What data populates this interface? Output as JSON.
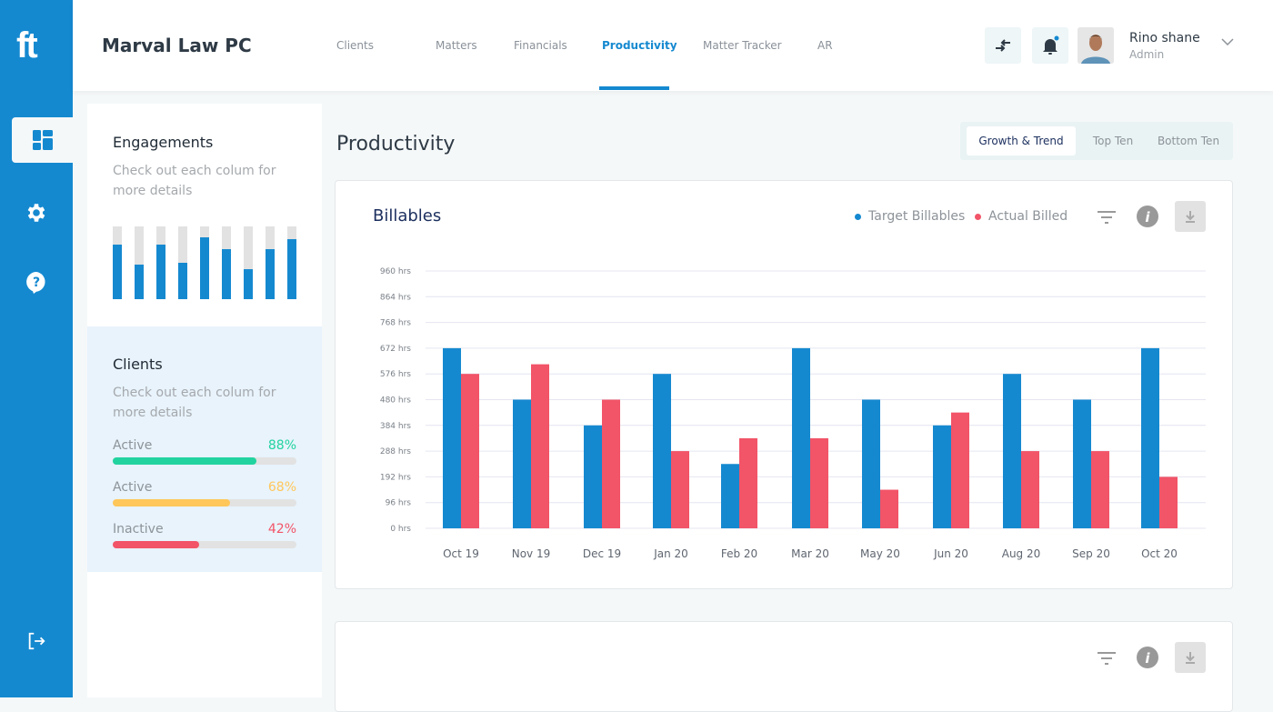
{
  "app": {
    "logo": "ft",
    "firm": "Marval Law PC"
  },
  "nav": {
    "tabs": [
      "Clients",
      "Matters",
      "Financials",
      "Productivity",
      "Matter Tracker",
      "AR"
    ],
    "active": "Productivity"
  },
  "sidebar": {
    "icons": [
      "dashboard-icon",
      "settings-icon",
      "help-icon",
      "logout-icon"
    ]
  },
  "user": {
    "name": "Rino shane",
    "role": "Admin",
    "has_notification": true
  },
  "engagements": {
    "title": "Engagements",
    "subtitle": "Check out each colum for more details",
    "bars": [
      0.75,
      0.48,
      0.75,
      0.5,
      0.85,
      0.69,
      0.41,
      0.69,
      0.82
    ]
  },
  "clients": {
    "title": "Clients",
    "subtitle": "Check out each colum for more details",
    "rows": [
      {
        "label": "Active",
        "value": "88%",
        "fraction": 0.78,
        "color": "#22d3a0"
      },
      {
        "label": "Active",
        "value": "68%",
        "fraction": 0.64,
        "color": "#ffc75a"
      },
      {
        "label": "Inactive",
        "value": "42%",
        "fraction": 0.47,
        "color": "#f25468"
      }
    ]
  },
  "page": {
    "title": "Productivity",
    "views": [
      "Growth & Trend",
      "Top Ten",
      "Bottom Ten"
    ],
    "active_view": "Growth & Trend"
  },
  "colors": {
    "accent": "#1589d0",
    "target": "#1589d0",
    "actual": "#f25468"
  },
  "chart_data": {
    "type": "bar",
    "title": "Billables",
    "categories": [
      "Oct 19",
      "Nov 19",
      "Dec 19",
      "Jan 20",
      "Feb 20",
      "Mar 20",
      "May 20",
      "Jun 20",
      "Aug 20",
      "Sep 20",
      "Oct 20"
    ],
    "series": [
      {
        "name": "Target Billables",
        "values": [
          672,
          480,
          384,
          576,
          240,
          672,
          480,
          384,
          576,
          480,
          672
        ]
      },
      {
        "name": "Actual Billed",
        "values": [
          576,
          612,
          480,
          288,
          336,
          336,
          144,
          432,
          288,
          288,
          192
        ]
      }
    ],
    "yticks": [
      "0 hrs",
      "96 hrs",
      "192 hrs",
      "288 hrs",
      "384 hrs",
      "480 hrs",
      "576 hrs",
      "672 hrs",
      "768 hrs",
      "864 hrs",
      "960 hrs"
    ],
    "ylim": [
      0,
      960
    ],
    "grid": true,
    "legend": "top-right"
  }
}
